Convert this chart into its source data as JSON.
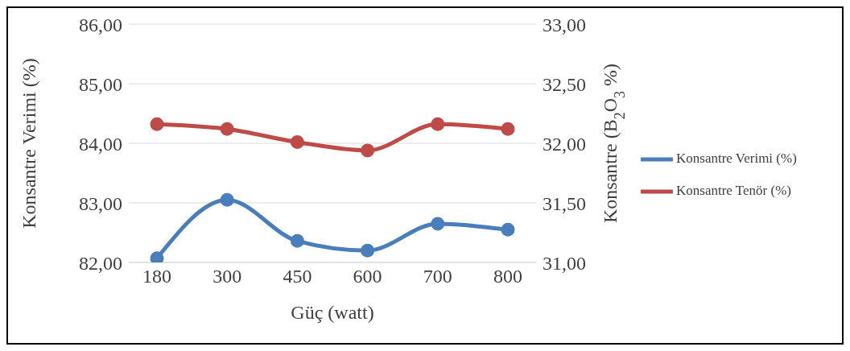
{
  "chart_data": {
    "type": "line",
    "xlabel": "Güç (watt)",
    "ylabel": "Konsantre Verimi (%)",
    "y2label": "Konsantre (B$_{2}$O$_{3}$ %)",
    "categories": [
      "180",
      "300",
      "450",
      "600",
      "700",
      "800"
    ],
    "series": [
      {
        "name": "Konsantre Verimi (%)",
        "color": "#4a7ebb",
        "values": [
          82.07,
          83.05,
          82.36,
          82.2,
          82.65,
          82.55
        ]
      },
      {
        "name": "Konsantre Tenör (%)",
        "color": "#be4b48",
        "axis": "y2",
        "values": [
          32.16,
          32.12,
          32.01,
          31.94,
          32.16,
          32.12
        ]
      }
    ],
    "ylim": [
      82,
      86
    ],
    "yticks": [
      {
        "value": 82,
        "label": "82,00"
      },
      {
        "value": 83,
        "label": "83,00"
      },
      {
        "value": 84,
        "label": "84,00"
      },
      {
        "value": 85,
        "label": "85,00"
      },
      {
        "value": 86,
        "label": "86,00"
      }
    ],
    "y2lim": [
      31,
      33
    ],
    "y2ticks": [
      {
        "value": 31,
        "label": "31,00"
      },
      {
        "value": 31.5,
        "label": "31,50"
      },
      {
        "value": 32,
        "label": "32,00"
      },
      {
        "value": 32.5,
        "label": "32,50"
      },
      {
        "value": 33,
        "label": "33,00"
      }
    ],
    "grid": "y",
    "legend": "right",
    "marker": "circle",
    "line_style": "solid"
  }
}
